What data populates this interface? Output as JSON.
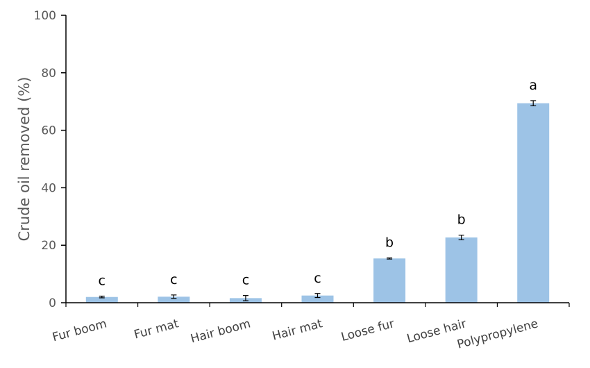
{
  "chart_data": {
    "type": "bar",
    "title": "",
    "xlabel": "",
    "ylabel": "Crude oil removed (%)",
    "ylim": [
      0,
      100
    ],
    "yticks": [
      0,
      20,
      40,
      60,
      80,
      100
    ],
    "categories": [
      "Fur boom",
      "Fur mat",
      "Hair boom",
      "Hair mat",
      "Loose fur",
      "Loose hair",
      "Polypropylene"
    ],
    "values": [
      2.0,
      2.1,
      1.6,
      2.5,
      15.4,
      22.7,
      69.4
    ],
    "errors": [
      0.3,
      0.6,
      0.9,
      0.7,
      0.2,
      0.8,
      0.9
    ],
    "significance_letters": [
      "c",
      "c",
      "c",
      "c",
      "b",
      "b",
      "a"
    ],
    "bar_color": "#9dc3e6",
    "axis_color": "#000000",
    "grid": false,
    "legend": "none"
  }
}
